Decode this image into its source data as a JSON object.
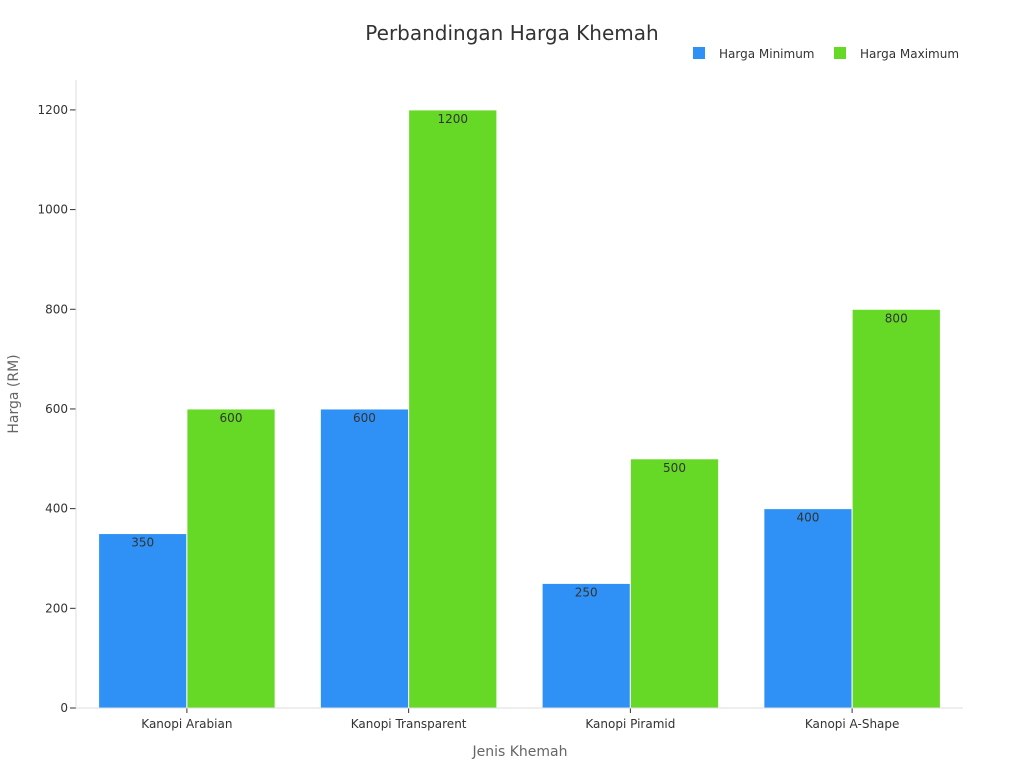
{
  "chart_data": {
    "type": "bar",
    "title": "Perbandingan Harga Khemah",
    "xlabel": "Jenis Khemah",
    "ylabel": "Harga (RM)",
    "categories": [
      "Kanopi Arabian",
      "Kanopi Transparent",
      "Kanopi Piramid",
      "Kanopi A-Shape"
    ],
    "series": [
      {
        "name": "Harga Minimum",
        "values": [
          350,
          600,
          250,
          400
        ],
        "color": "#2f91f5"
      },
      {
        "name": "Harga Maximum",
        "values": [
          600,
          1200,
          500,
          800
        ],
        "color": "#66d926"
      }
    ],
    "ylim": [
      0,
      1260
    ],
    "yticks": [
      0,
      200,
      400,
      600,
      800,
      1000,
      1200
    ],
    "grid": false,
    "legend": "top-right",
    "data_labels": true
  }
}
